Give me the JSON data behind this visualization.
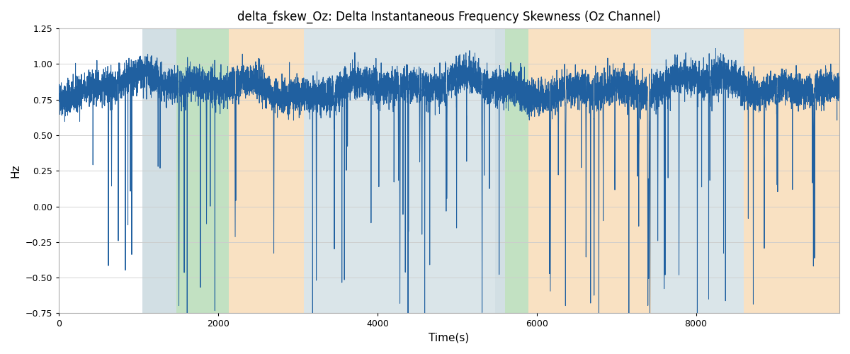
{
  "title": "delta_fskew_Oz: Delta Instantaneous Frequency Skewness (Oz Channel)",
  "xlabel": "Time(s)",
  "ylabel": "Hz",
  "xlim": [
    0,
    9800
  ],
  "ylim": [
    -0.75,
    1.25
  ],
  "yticks": [
    -0.75,
    -0.5,
    -0.25,
    0.0,
    0.25,
    0.5,
    0.75,
    1.0,
    1.25
  ],
  "xticks": [
    0,
    2000,
    4000,
    6000,
    8000
  ],
  "line_color": "#2060a0",
  "line_width": 0.7,
  "colored_regions": [
    {
      "xmin": 1050,
      "xmax": 1480,
      "color": "#aec6cf",
      "alpha": 0.55
    },
    {
      "xmin": 1480,
      "xmax": 2130,
      "color": "#90c990",
      "alpha": 0.55
    },
    {
      "xmin": 2130,
      "xmax": 3080,
      "color": "#f5c990",
      "alpha": 0.55
    },
    {
      "xmin": 3080,
      "xmax": 5480,
      "color": "#aec6cf",
      "alpha": 0.45
    },
    {
      "xmin": 5480,
      "xmax": 5600,
      "color": "#aec6cf",
      "alpha": 0.55
    },
    {
      "xmin": 5600,
      "xmax": 5900,
      "color": "#90c990",
      "alpha": 0.55
    },
    {
      "xmin": 5900,
      "xmax": 7430,
      "color": "#f5c990",
      "alpha": 0.55
    },
    {
      "xmin": 7430,
      "xmax": 8600,
      "color": "#aec6cf",
      "alpha": 0.45
    },
    {
      "xmin": 8600,
      "xmax": 9800,
      "color": "#f5c990",
      "alpha": 0.55
    }
  ],
  "seed": 42,
  "n_points": 9800
}
